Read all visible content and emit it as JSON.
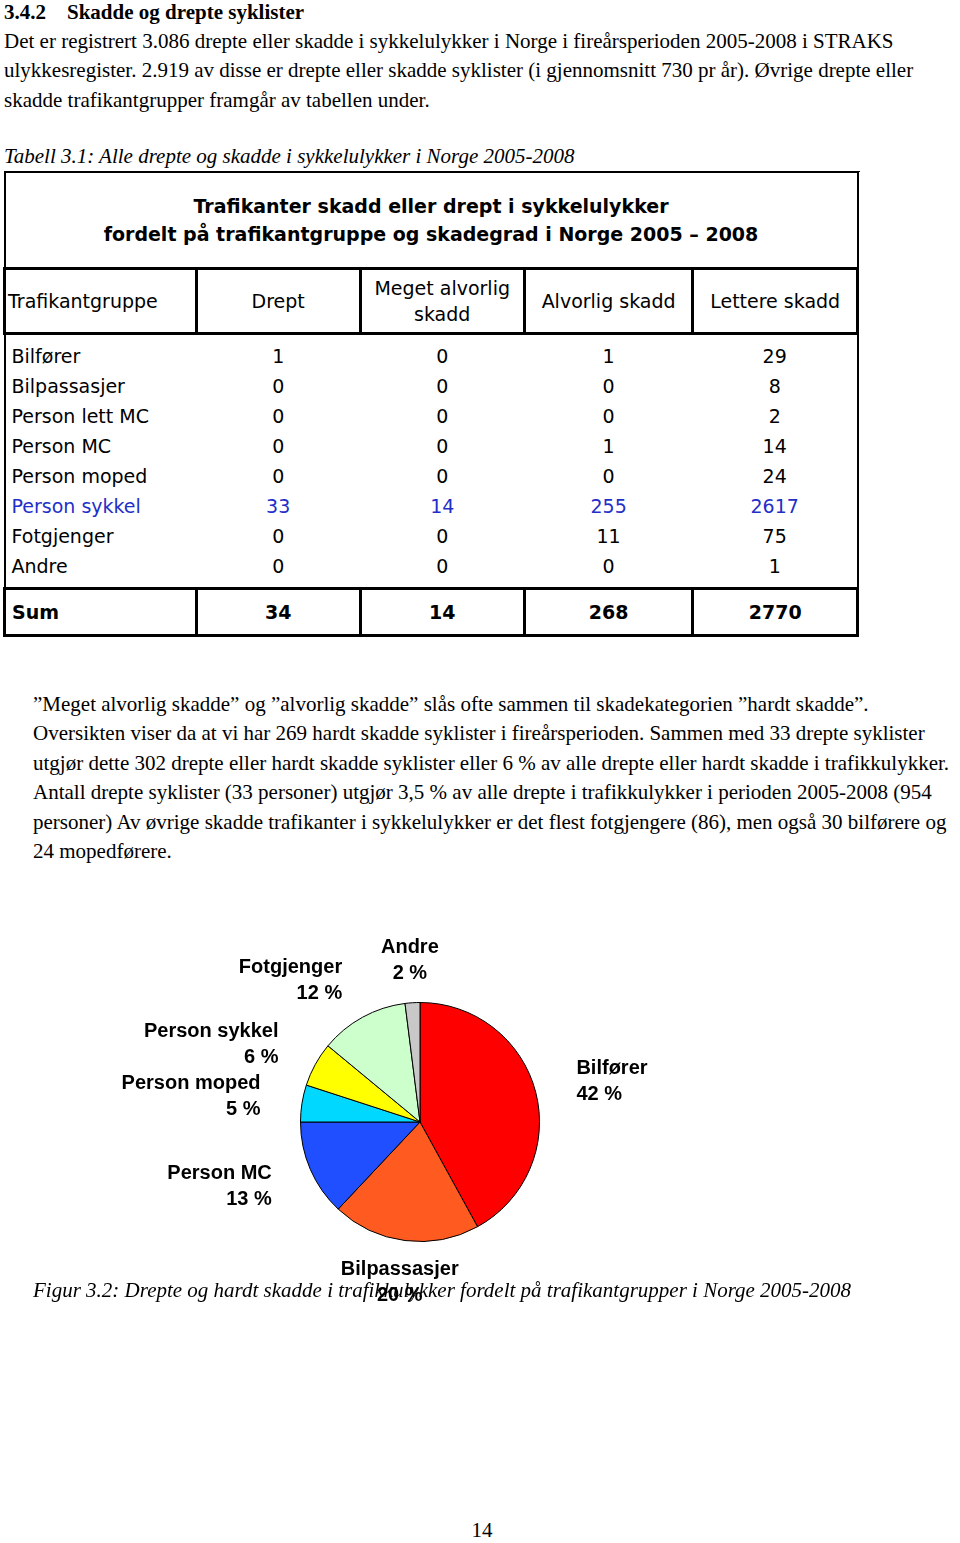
{
  "section": {
    "number": "3.4.2",
    "title": "Skadde og drepte syklister"
  },
  "paragraphs": [
    "Det er registrert 3.086 drepte eller skadde i sykkelulykker i Norge i fireårsperioden 2005-2008 i STRAKS ulykkesregister. 2.919 av disse er drepte eller skadde syklister (i gjennomsnitt 730 pr år). Øvrige drepte eller skadde trafikantgrupper framgår av tabellen under.",
    "”Meget alvorlig skadde” og ”alvorlig skadde” slås ofte sammen til skadekategorien ”hardt skadde”. Oversikten viser da at vi har 269 hardt skadde syklister i fireårsperioden. Sammen med 33 drepte syklister utgjør dette 302 drepte eller hardt skadde syklister eller 6 % av alle drepte eller hardt skadde i trafikkulykker. Antall drepte syklister (33 personer) utgjør 3,5 % av alle drepte i trafikkulykker i perioden 2005-2008 (954 personer) Av øvrige skadde trafikanter i sykkelulykker er det flest fotgjengere (86), men også 30 bilførere og 24 mopedførere."
  ],
  "table_caption": "Tabell 3.1: Alle drepte og skadde i sykkelulykker i Norge 2005-2008",
  "table": {
    "title_lines": [
      "Trafikanter skadd eller drept i sykkelulykker",
      "fordelt på trafikantgruppe og skadegrad i Norge 2005 – 2008"
    ],
    "columns": [
      "Trafikantgruppe",
      "Drept",
      "Meget alvorlig skadd",
      "Alvorlig skadd",
      "Lettere skadd"
    ],
    "rows": [
      {
        "cells": [
          "Bilfører",
          1,
          0,
          1,
          29
        ]
      },
      {
        "cells": [
          "Bilpassasjer",
          0,
          0,
          0,
          8
        ]
      },
      {
        "cells": [
          "Person lett MC",
          0,
          0,
          0,
          2
        ]
      },
      {
        "cells": [
          "Person MC",
          0,
          0,
          1,
          14
        ]
      },
      {
        "cells": [
          "Person moped",
          0,
          0,
          0,
          24
        ]
      },
      {
        "cells": [
          "Person sykkel",
          33,
          14,
          255,
          2617
        ],
        "color": "#1f2fc8"
      },
      {
        "cells": [
          "Fotgjenger",
          0,
          0,
          11,
          75
        ]
      },
      {
        "cells": [
          "Andre",
          0,
          0,
          0,
          1
        ]
      }
    ],
    "total": [
      "Sum",
      34,
      14,
      268,
      2770
    ]
  },
  "chart_data": {
    "type": "pie",
    "categories": [
      "Bilfører",
      "Bilpassasjer",
      "Person MC",
      "Person moped",
      "Person sykkel",
      "Fotgjenger",
      "Andre"
    ],
    "values": [
      42,
      20,
      13,
      5,
      6,
      12,
      2
    ],
    "value_labels": [
      "42 %",
      "20 %",
      "13 %",
      "5 %",
      "6 %",
      "12 %",
      "2 %"
    ],
    "colors": [
      "#ff0000",
      "#ff5a1f",
      "#1f4fff",
      "#00d8ff",
      "#ffff00",
      "#ccffcc",
      "#c8c8c8"
    ],
    "data_labels": true
  },
  "figure_caption": "Figur 3.2: Drepte og hardt skadde i trafikkulykker fordelt på trafikantgrupper i Norge 2005-2008",
  "page_number": 14
}
